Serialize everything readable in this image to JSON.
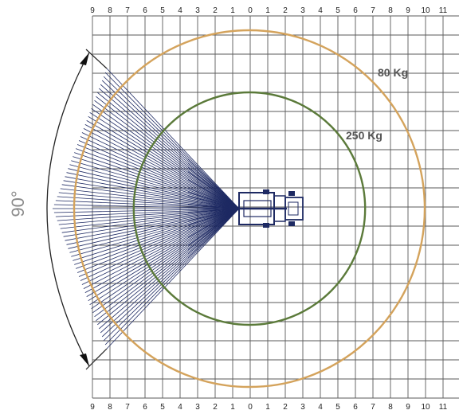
{
  "diagram": {
    "axis_ticks": [
      "9",
      "8",
      "7",
      "6",
      "5",
      "4",
      "3",
      "2",
      "1",
      "0",
      "1",
      "2",
      "3",
      "4",
      "5",
      "6",
      "7",
      "8",
      "9",
      "10",
      "11"
    ],
    "angle_label": "90°",
    "working_range": [
      {
        "label": "80 Kg",
        "radius_m": 10,
        "color": "#d4a35c"
      },
      {
        "label": "250 Kg",
        "radius_m": 6.6,
        "color": "#5b7a3a"
      }
    ],
    "fan_color": "#1e2a63",
    "grid_color": "#5a5a5a"
  }
}
